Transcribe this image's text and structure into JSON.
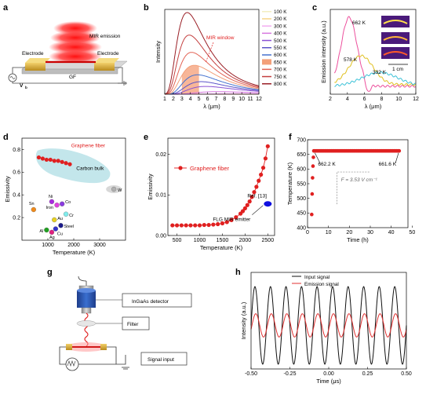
{
  "panels": {
    "a": {
      "label": "a",
      "mir_emission": "MIR emission",
      "electrode_left": "Electrode",
      "electrode_right": "Electrode",
      "gf": "GF",
      "vb": "V"
    },
    "b": {
      "label": "b",
      "window_text": "MIR window"
    },
    "c": {
      "label": "c",
      "scale_text": "1 cm"
    },
    "d": {
      "label": "d"
    },
    "e": {
      "label": "e"
    },
    "f": {
      "label": "f"
    },
    "g": {
      "label": "g",
      "detector": "InGaAs detector",
      "filter": "Filter",
      "signal_input": "Signal input"
    },
    "h": {
      "label": "h"
    }
  },
  "chart_data": [
    {
      "panel": "b",
      "type": "line",
      "xlabel": "λ (μm)",
      "ylabel": "Intensity",
      "xlim": [
        1,
        12
      ],
      "xticks": [
        1,
        2,
        3,
        4,
        5,
        6,
        7,
        8,
        9,
        10,
        11,
        12
      ],
      "legend_position": "right",
      "legend": [
        "100 K",
        "200 K",
        "300 K",
        "400 K",
        "500 K",
        "550 K",
        "600 K",
        "650 K",
        "700 K",
        "750 K",
        "800 K"
      ],
      "series_temperatures_K": [
        100,
        200,
        300,
        400,
        500,
        550,
        600,
        650,
        700,
        750,
        800
      ],
      "series_colors": [
        "#f3eec0",
        "#f7d58a",
        "#f3aef0",
        "#d778e0",
        "#8a52d4",
        "#5b54c8",
        "#4672cf",
        "#f3a07a",
        "#e26456",
        "#c44040",
        "#9a1f26"
      ],
      "highlighted_series": "650 K",
      "annotations": [
        "MIR window"
      ]
    },
    {
      "panel": "c",
      "type": "line",
      "xlabel": "λ (μm)",
      "ylabel": "Emission intensity (a.u.)",
      "xlim": [
        2,
        12
      ],
      "xticks": [
        2,
        4,
        6,
        8,
        10,
        12
      ],
      "series": [
        {
          "name": "662 K",
          "peak_x": 4.2,
          "color": "#ec4f9c"
        },
        {
          "name": "578 K",
          "peak_x": 5.6,
          "color": "#e0c020"
        },
        {
          "name": "332 K",
          "peak_x": 7.8,
          "color": "#3cc2d8"
        }
      ],
      "annotations": [
        "662 K",
        "578 K",
        "332 K"
      ]
    },
    {
      "panel": "d",
      "type": "scatter",
      "xlabel": "Temperature (K)",
      "ylabel": "Emissivity",
      "xlim": [
        0,
        4000
      ],
      "ylim": [
        0,
        0.9
      ],
      "xticks": [
        1000,
        2000,
        3000
      ],
      "yticks": [
        0.2,
        0.4,
        0.6,
        0.8
      ],
      "series": [
        {
          "name": "Graphene fiber",
          "color": "#e02020",
          "x": [
            650,
            800,
            950,
            1100,
            1250,
            1400,
            1550,
            1700,
            1850
          ],
          "y": [
            0.73,
            0.72,
            0.71,
            0.71,
            0.7,
            0.7,
            0.69,
            0.68,
            0.67
          ]
        }
      ],
      "materials": [
        {
          "name": "Sn",
          "x": 450,
          "y": 0.27,
          "color": "#f08a1a"
        },
        {
          "name": "Ni",
          "x": 1150,
          "y": 0.34,
          "color": "#aa2be0"
        },
        {
          "name": "Iron",
          "x": 1350,
          "y": 0.31,
          "color": "#e040e0"
        },
        {
          "name": "Co",
          "x": 1550,
          "y": 0.32,
          "color": "#8a3ae0"
        },
        {
          "name": "Cr",
          "x": 1700,
          "y": 0.23,
          "color": "#80ecec"
        },
        {
          "name": "Au",
          "x": 1250,
          "y": 0.18,
          "color": "#e6d020"
        },
        {
          "name": "Al",
          "x": 950,
          "y": 0.09,
          "color": "#20a020"
        },
        {
          "name": "Ag",
          "x": 1150,
          "y": 0.07,
          "color": "#e02080"
        },
        {
          "name": "Cu",
          "x": 1300,
          "y": 0.1,
          "color": "#3333cc"
        },
        {
          "name": "Steel",
          "x": 1500,
          "y": 0.13,
          "color": "#1a1a8a"
        },
        {
          "name": "W",
          "x": 3550,
          "y": 0.45,
          "color": "#b0b0b0"
        }
      ],
      "annotations": [
        "Graphene fiber",
        "Carbon bulk"
      ]
    },
    {
      "panel": "e",
      "type": "scatter",
      "xlabel": "Temperature (K)",
      "ylabel": "Emissivity",
      "xlim": [
        300,
        2650
      ],
      "ylim": [
        0,
        0.024
      ],
      "xticks": [
        500,
        1000,
        1500,
        2000,
        2500
      ],
      "yticks": [
        0.0,
        0.01,
        0.02
      ],
      "series": [
        {
          "name": "Graphene fiber",
          "color": "#e02020",
          "x": [
            400,
            500,
            600,
            700,
            800,
            900,
            1000,
            1100,
            1200,
            1300,
            1400,
            1500,
            1600,
            1700,
            1800,
            1900,
            1950,
            2000,
            2050,
            2100,
            2150,
            2200,
            2250,
            2300,
            2350,
            2400,
            2450,
            2500
          ],
          "y": [
            0.0025,
            0.0025,
            0.0025,
            0.0025,
            0.0025,
            0.0025,
            0.0025,
            0.0026,
            0.0026,
            0.0027,
            0.0028,
            0.003,
            0.0033,
            0.0038,
            0.0045,
            0.0054,
            0.006,
            0.0067,
            0.0075,
            0.0084,
            0.0095,
            0.0107,
            0.012,
            0.0135,
            0.015,
            0.0167,
            0.019,
            0.022
          ]
        }
      ],
      "reference": {
        "name": "FLG MIR emitter",
        "x": 2500,
        "y": 0.0078,
        "color": "#1010e0",
        "label": "Ref. [13]"
      }
    },
    {
      "panel": "f",
      "type": "scatter",
      "xlabel": "Time (h)",
      "ylabel": "Temperature (K)",
      "xlim": [
        0,
        48
      ],
      "ylim": [
        400,
        700
      ],
      "xticks": [
        0,
        10,
        20,
        30,
        40,
        50
      ],
      "yticks": [
        400,
        450,
        500,
        550,
        600,
        650,
        700
      ],
      "series": [
        {
          "name": "Temperature",
          "color": "#e02020",
          "x": [
            2.0,
            2.2,
            2.4,
            2.6,
            2.8
          ],
          "y": [
            445,
            515,
            570,
            610,
            640
          ]
        }
      ],
      "plateau": {
        "from": 3,
        "to": 44,
        "value": 662
      },
      "annotations": [
        "662.2 K",
        "661.6 K",
        "F = 3.53 V cm⁻¹"
      ]
    },
    {
      "panel": "h",
      "type": "line",
      "xlabel": "Time (μs)",
      "ylabel": "Intensity (a.u.)",
      "xlim": [
        -0.5,
        0.5
      ],
      "xticks": [
        -0.5,
        -0.25,
        0.0,
        0.25,
        0.5
      ],
      "legend_position": "top",
      "series": [
        {
          "name": "Input signal",
          "color": "#111111",
          "cycles": 10,
          "amplitude": 1.0
        },
        {
          "name": "Emission signal",
          "color": "#e03030",
          "cycles": 10,
          "amplitude": 0.3
        }
      ]
    }
  ],
  "text": {
    "b_window": "MIR window",
    "c_662": "662 K",
    "c_578": "578 K",
    "c_332": "332 K",
    "d_gf": "Graphene fiber",
    "d_carbon": "Carbon bulk",
    "e_legend": "Graphene fiber",
    "e_ref": "Ref. [13]",
    "e_flg": "FLG MIR emitter",
    "f_t1": "662.2 K",
    "f_t2": "661.6 K",
    "f_field": "F = 3.53 V cm⁻¹",
    "h_leg1": "Input signal",
    "h_leg2": "Emission signal"
  }
}
